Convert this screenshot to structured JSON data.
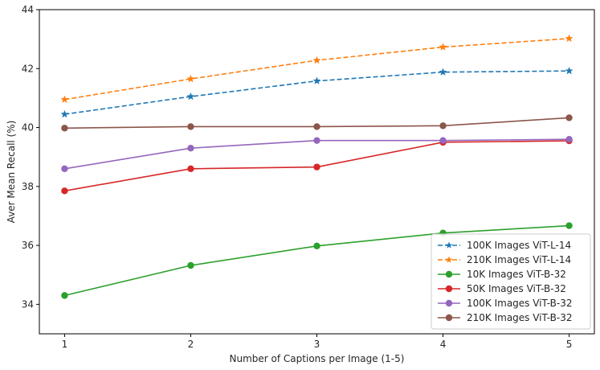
{
  "chart_data": {
    "type": "line",
    "title": "",
    "xlabel": "Number of Captions per Image (1-5)",
    "ylabel": "Aver Mean Recall (%)",
    "x": [
      1,
      2,
      3,
      4,
      5
    ],
    "xlim": [
      0.8,
      5.2
    ],
    "ylim": [
      33.0,
      44.0
    ],
    "xticks": [
      1,
      2,
      3,
      4,
      5
    ],
    "yticks": [
      34,
      36,
      38,
      40,
      42,
      44
    ],
    "grid": false,
    "legend_position": "lower-right",
    "series": [
      {
        "name": "100K Images ViT-L-14",
        "values": [
          40.45,
          41.05,
          41.58,
          41.88,
          41.92
        ],
        "color": "#1f77b4",
        "linestyle": "dashed",
        "marker": "star"
      },
      {
        "name": "210K Images ViT-L-14",
        "values": [
          40.95,
          41.65,
          42.28,
          42.73,
          43.02
        ],
        "color": "#ff7f0e",
        "linestyle": "dashed",
        "marker": "star"
      },
      {
        "name": "10K Images ViT-B-32",
        "values": [
          34.3,
          35.32,
          35.98,
          36.42,
          36.67
        ],
        "color": "#2ca02c",
        "linestyle": "solid",
        "marker": "circle"
      },
      {
        "name": "50K Images ViT-B-32",
        "values": [
          37.85,
          38.6,
          38.66,
          39.5,
          39.55
        ],
        "color": "#d62728",
        "linestyle": "solid",
        "marker": "circle"
      },
      {
        "name": "100K Images ViT-B-32",
        "values": [
          38.6,
          39.3,
          39.56,
          39.56,
          39.6
        ],
        "color": "#9467bd",
        "linestyle": "solid",
        "marker": "circle"
      },
      {
        "name": "210K Images ViT-B-32",
        "values": [
          39.98,
          40.03,
          40.03,
          40.06,
          40.33
        ],
        "color": "#8c564b",
        "linestyle": "solid",
        "marker": "circle"
      }
    ]
  }
}
